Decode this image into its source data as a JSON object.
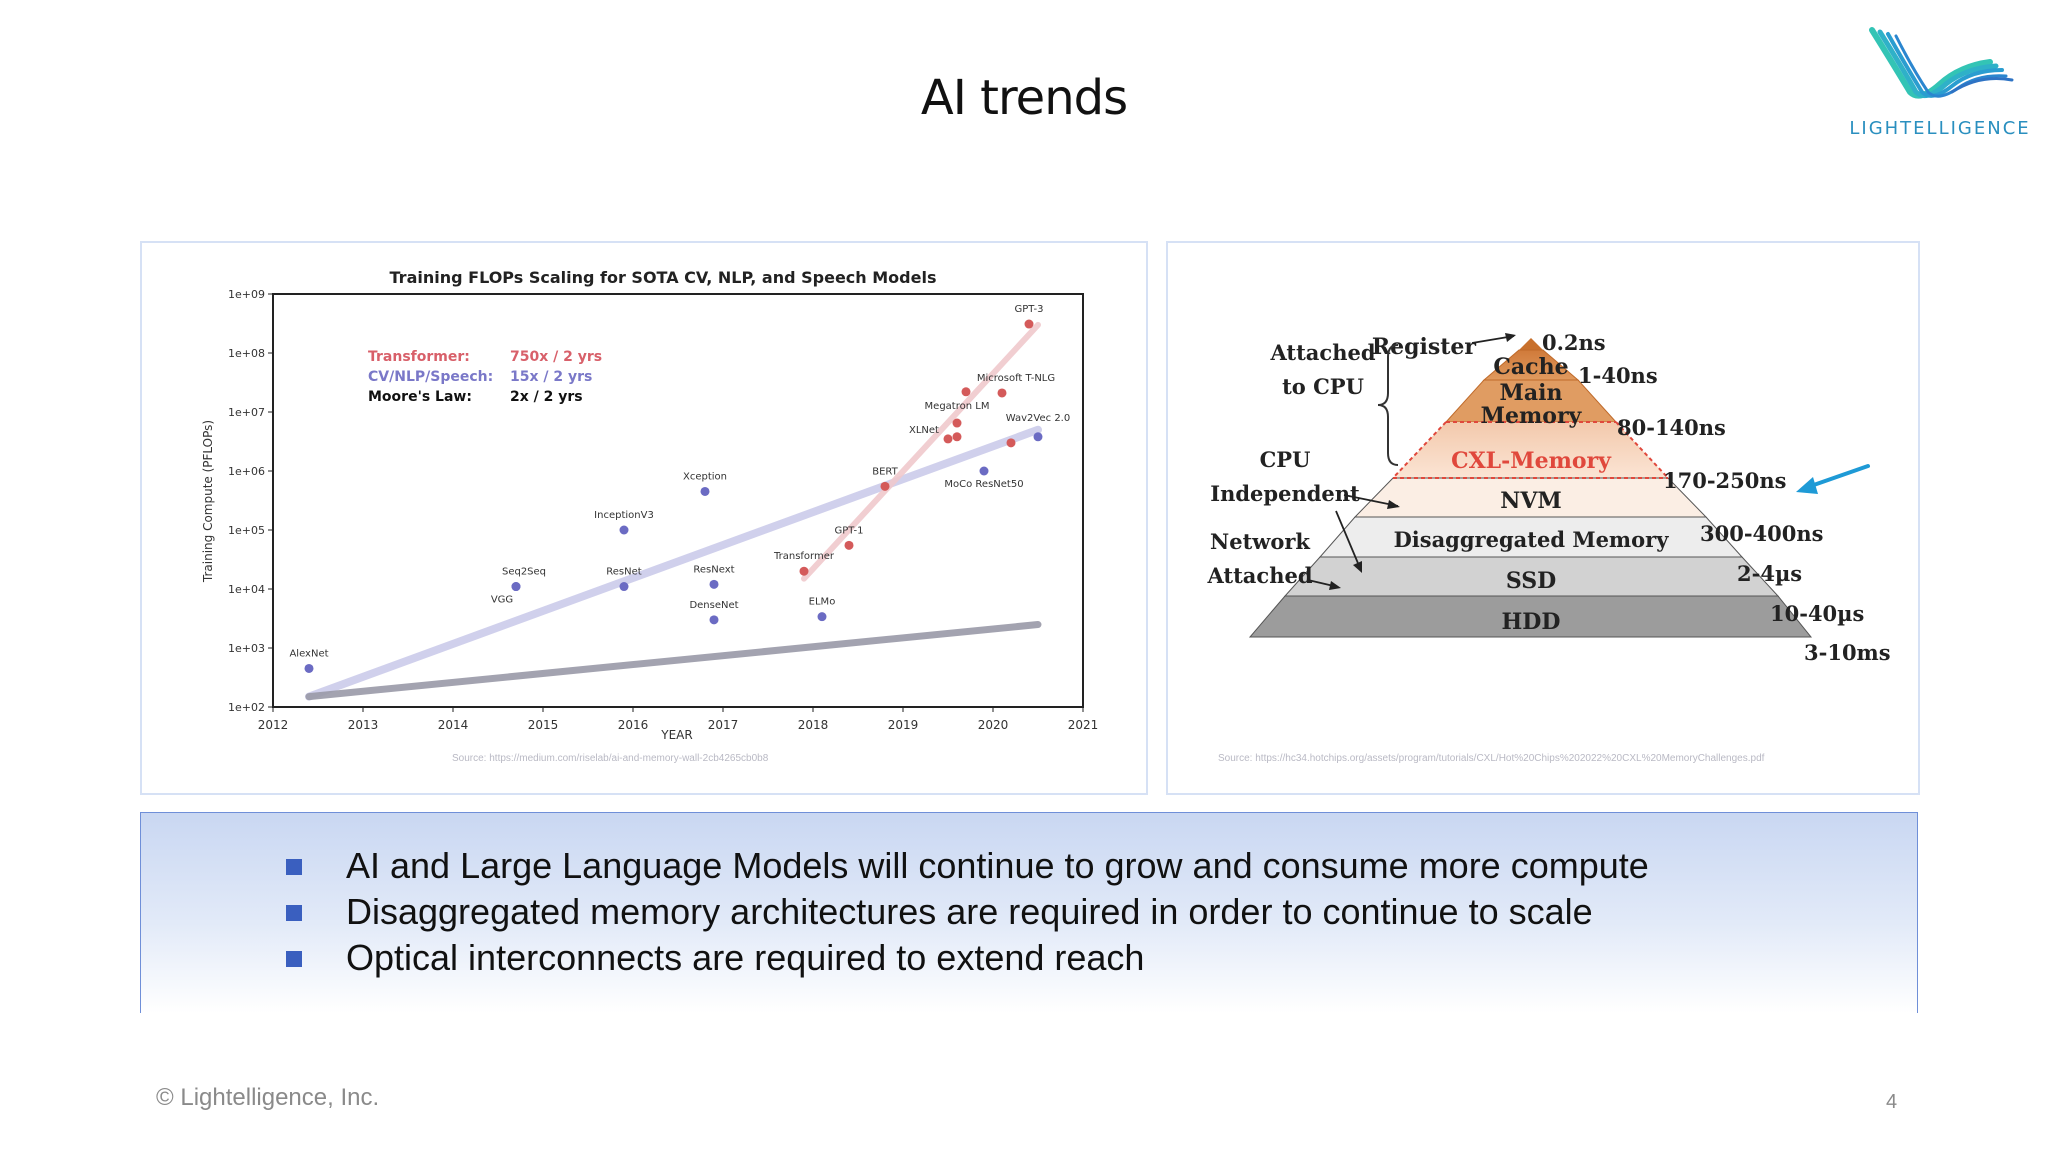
{
  "slide": {
    "title": "AI trends",
    "page_number": "4",
    "footer": "© Lightelligence, Inc."
  },
  "logo": {
    "text": "LIGHTELLIGENCE",
    "color": "#2a8fbf"
  },
  "chart_data": {
    "type": "scatter",
    "title": "Training FLOPs Scaling for SOTA CV, NLP, and Speech Models",
    "xlabel": "YEAR",
    "ylabel": "Training Compute (PFLOPs)",
    "xlim": [
      2012,
      2021
    ],
    "ylim": [
      100,
      1000000000
    ],
    "y_scale": "log",
    "x_ticks": [
      "2012",
      "2013",
      "2014",
      "2015",
      "2016",
      "2017",
      "2018",
      "2019",
      "2020",
      "2021"
    ],
    "y_ticks": [
      {
        "label": "1e+09",
        "v": 1000000000
      },
      {
        "label": "1e+08",
        "v": 100000000
      },
      {
        "label": "1e+07",
        "v": 10000000
      },
      {
        "label": "1e+06",
        "v": 1000000
      },
      {
        "label": "1e+05",
        "v": 100000
      },
      {
        "label": "1e+04",
        "v": 10000
      },
      {
        "label": "1e+03",
        "v": 1000
      },
      {
        "label": "1e+02",
        "v": 100
      }
    ],
    "legend": [
      {
        "label": "Transformer:",
        "rate": "750x / 2 yrs",
        "color": "#d8606a"
      },
      {
        "label": "CV/NLP/Speech:",
        "rate": "15x / 2 yrs",
        "color": "#7a78c8"
      },
      {
        "label": "Moore's Law:",
        "rate": "2x / 2 yrs",
        "color": "#111111"
      }
    ],
    "colors": {
      "cv": "#6b6bc3",
      "transformer": "#d45a5a",
      "cv_trend": "#ccccea",
      "transformer_trend": "#f0c9cd",
      "moore_trend": "#9a9aa8"
    },
    "points": [
      {
        "name": "AlexNet",
        "x": 2012.4,
        "y": 450,
        "group": "cv"
      },
      {
        "name": "VGG",
        "x": 2014.7,
        "y": 11000,
        "group": "cv"
      },
      {
        "name": "Seq2Seq",
        "x": 2014.7,
        "y": 11000,
        "group": "cv"
      },
      {
        "name": "InceptionV3",
        "x": 2015.9,
        "y": 100000,
        "group": "cv"
      },
      {
        "name": "ResNet",
        "x": 2015.9,
        "y": 11000,
        "group": "cv"
      },
      {
        "name": "Xception",
        "x": 2016.8,
        "y": 450000,
        "group": "cv"
      },
      {
        "name": "ResNext",
        "x": 2016.9,
        "y": 12000,
        "group": "cv"
      },
      {
        "name": "DenseNet",
        "x": 2016.9,
        "y": 3000,
        "group": "cv"
      },
      {
        "name": "ELMo",
        "x": 2018.1,
        "y": 3400,
        "group": "cv"
      },
      {
        "name": "MoCo ResNet50",
        "x": 2019.9,
        "y": 1000000,
        "group": "cv"
      },
      {
        "name": "Wav2Vec 2.0",
        "x": 2020.5,
        "y": 3800000,
        "group": "cv"
      },
      {
        "name": "Transformer",
        "x": 2017.9,
        "y": 20000,
        "group": "transformer"
      },
      {
        "name": "GPT-1",
        "x": 2018.4,
        "y": 55000,
        "group": "transformer"
      },
      {
        "name": "BERT",
        "x": 2018.8,
        "y": 550000,
        "group": "transformer"
      },
      {
        "name": "XLNet",
        "x": 2019.5,
        "y": 3500000,
        "group": "transformer"
      },
      {
        "name": "",
        "x": 2019.6,
        "y": 3800000,
        "group": "transformer"
      },
      {
        "name": "Megatron LM",
        "x": 2019.6,
        "y": 6500000,
        "group": "transformer"
      },
      {
        "name": "",
        "x": 2020.2,
        "y": 3000000,
        "group": "transformer"
      },
      {
        "name": "",
        "x": 2019.7,
        "y": 22000000,
        "group": "transformer"
      },
      {
        "name": "Microsoft T-NLG",
        "x": 2020.1,
        "y": 21000000,
        "group": "transformer"
      },
      {
        "name": "GPT-3",
        "x": 2020.4,
        "y": 310000000,
        "group": "transformer"
      }
    ],
    "trend_lines": [
      {
        "name": "CV/NLP/Speech",
        "from": [
          2012.4,
          150
        ],
        "to": [
          2020.5,
          5000000
        ],
        "group": "cv_trend"
      },
      {
        "name": "Transformer",
        "from": [
          2017.9,
          15000
        ],
        "to": [
          2020.5,
          300000000
        ],
        "group": "transformer_trend"
      },
      {
        "name": "Moore's Law",
        "from": [
          2012.4,
          150
        ],
        "to": [
          2020.5,
          2500
        ],
        "group": "moore_trend"
      }
    ]
  },
  "left_panel": {
    "source": "Source: https://medium.com/riselab/ai-and-memory-wall-2cb4265cb0b8"
  },
  "hierarchy": {
    "side_labels": [
      {
        "line1": "Attached",
        "line2": "to CPU"
      },
      {
        "line1": "CPU",
        "line2": "Independent"
      },
      {
        "line1": "Network",
        "line2": "Attached"
      }
    ],
    "levels": [
      {
        "label": "Register",
        "latency": "0.2ns"
      },
      {
        "label": "Cache",
        "latency": "1-40ns"
      },
      {
        "label": "Main",
        "label2": "Memory",
        "latency": "80-140ns"
      },
      {
        "label": "CXL-Memory",
        "latency": "170-250ns",
        "color": "#e0483c"
      },
      {
        "label": "NVM",
        "latency": "300-400ns"
      },
      {
        "label": "Disaggregated Memory",
        "latency": "2-4µs"
      },
      {
        "label": "SSD",
        "latency": "10-40µs"
      },
      {
        "label": "HDD",
        "latency": "3-10ms"
      }
    ],
    "source": "Source: https://hc34.hotchips.org/assets/program/tutorials/CXL/Hot%20Chips%202022%20CXL%20MemoryChallenges.pdf",
    "arrow_color": "#1e9ad6"
  },
  "bullets": [
    "AI and Large Language Models will continue to grow and consume more compute",
    "Disaggregated memory architectures are required in order to continue to scale",
    "Optical interconnects are required to extend reach"
  ]
}
